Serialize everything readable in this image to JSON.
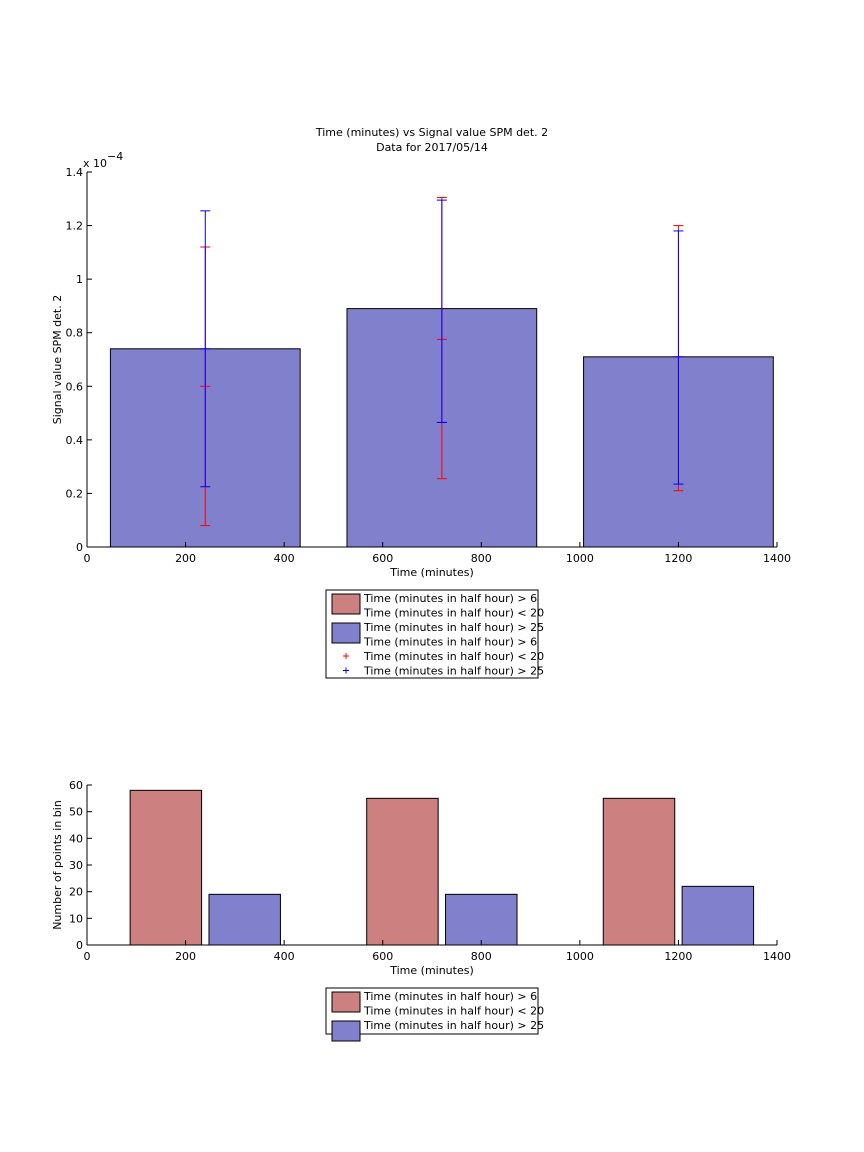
{
  "chart_data": [
    {
      "type": "bar",
      "title": "Time (minutes) vs Signal value SPM det. 2",
      "subtitle": "Data for 2017/05/14",
      "xlabel": "Time (minutes)",
      "ylabel": "Signal value SPM det. 2",
      "y_exponent_label": "x 10",
      "y_exponent_power": "−4",
      "xlim": [
        0,
        1400
      ],
      "ylim": [
        0,
        1.4
      ],
      "xticks": [
        0,
        200,
        400,
        600,
        800,
        1000,
        1200,
        1400
      ],
      "yticks": [
        0,
        0.2,
        0.4,
        0.6,
        0.8,
        1,
        1.2,
        1.4
      ],
      "ytick_labels": [
        "0",
        "0.2",
        "0.4",
        "0.6",
        "0.8",
        "1",
        "1.2",
        "1.4"
      ],
      "grid": false,
      "bar_width": 385,
      "bars": [
        {
          "x": 240,
          "value": 0.74,
          "color": "#8080cc"
        },
        {
          "x": 720,
          "value": 0.89,
          "color": "#8080cc"
        },
        {
          "x": 1200,
          "value": 0.71,
          "color": "#8080cc"
        }
      ],
      "error_bars": [
        {
          "x": 240,
          "center": 0.6,
          "low": 0.08,
          "high": 1.12,
          "color": "#ff0000"
        },
        {
          "x": 240,
          "center": 0.74,
          "low": 0.225,
          "high": 1.255,
          "color": "#0000ff"
        },
        {
          "x": 720,
          "center": 0.775,
          "low": 0.255,
          "high": 1.305,
          "color": "#ff0000"
        },
        {
          "x": 720,
          "center": 0.465,
          "low": 0.465,
          "high": 1.295,
          "color": "#0000ff"
        },
        {
          "x": 1200,
          "center": 0.71,
          "low": 0.21,
          "high": 1.2,
          "color": "#ff0000"
        },
        {
          "x": 1200,
          "center": 0.71,
          "low": 0.235,
          "high": 1.18,
          "color": "#0000ff"
        }
      ],
      "legend": {
        "placement": "below",
        "entries": [
          {
            "kind": "patch",
            "color": "#cc8080",
            "label": "Time (minutes in half hour) > 6"
          },
          {
            "kind": "text",
            "label": "Time (minutes in half hour) < 20"
          },
          {
            "kind": "patch",
            "color": "#8080cc",
            "label": "Time (minutes in half hour) > 25"
          },
          {
            "kind": "text",
            "label": "Time (minutes in half hour) > 6"
          },
          {
            "kind": "marker",
            "color": "#ff0000",
            "label": "Time (minutes in half hour) < 20"
          },
          {
            "kind": "marker",
            "color": "#0000ff",
            "label": "Time (minutes in half hour) > 25"
          }
        ]
      }
    },
    {
      "type": "bar",
      "title": "",
      "xlabel": "Time (minutes)",
      "ylabel": "Number of points in bin",
      "xlim": [
        0,
        1400
      ],
      "ylim": [
        0,
        60
      ],
      "xticks": [
        0,
        200,
        400,
        600,
        800,
        1000,
        1200,
        1400
      ],
      "yticks": [
        0,
        10,
        20,
        30,
        40,
        50,
        60
      ],
      "ytick_labels": [
        "0",
        "10",
        "20",
        "30",
        "40",
        "50",
        "60"
      ],
      "grid": false,
      "bar_width": 145,
      "bars": [
        {
          "x": 160,
          "value": 58,
          "color": "#cc8080"
        },
        {
          "x": 320,
          "value": 19,
          "color": "#8080cc"
        },
        {
          "x": 640,
          "value": 55,
          "color": "#cc8080"
        },
        {
          "x": 800,
          "value": 19,
          "color": "#8080cc"
        },
        {
          "x": 1120,
          "value": 55,
          "color": "#cc8080"
        },
        {
          "x": 1280,
          "value": 22,
          "color": "#8080cc"
        }
      ],
      "legend": {
        "placement": "below",
        "entries": [
          {
            "kind": "patch",
            "color": "#cc8080",
            "label": "Time (minutes in half hour) > 6"
          },
          {
            "kind": "text",
            "label": "Time (minutes in half hour) < 20"
          },
          {
            "kind": "patch",
            "color": "#8080cc",
            "label": "Time (minutes in half hour) > 25"
          }
        ]
      }
    }
  ]
}
